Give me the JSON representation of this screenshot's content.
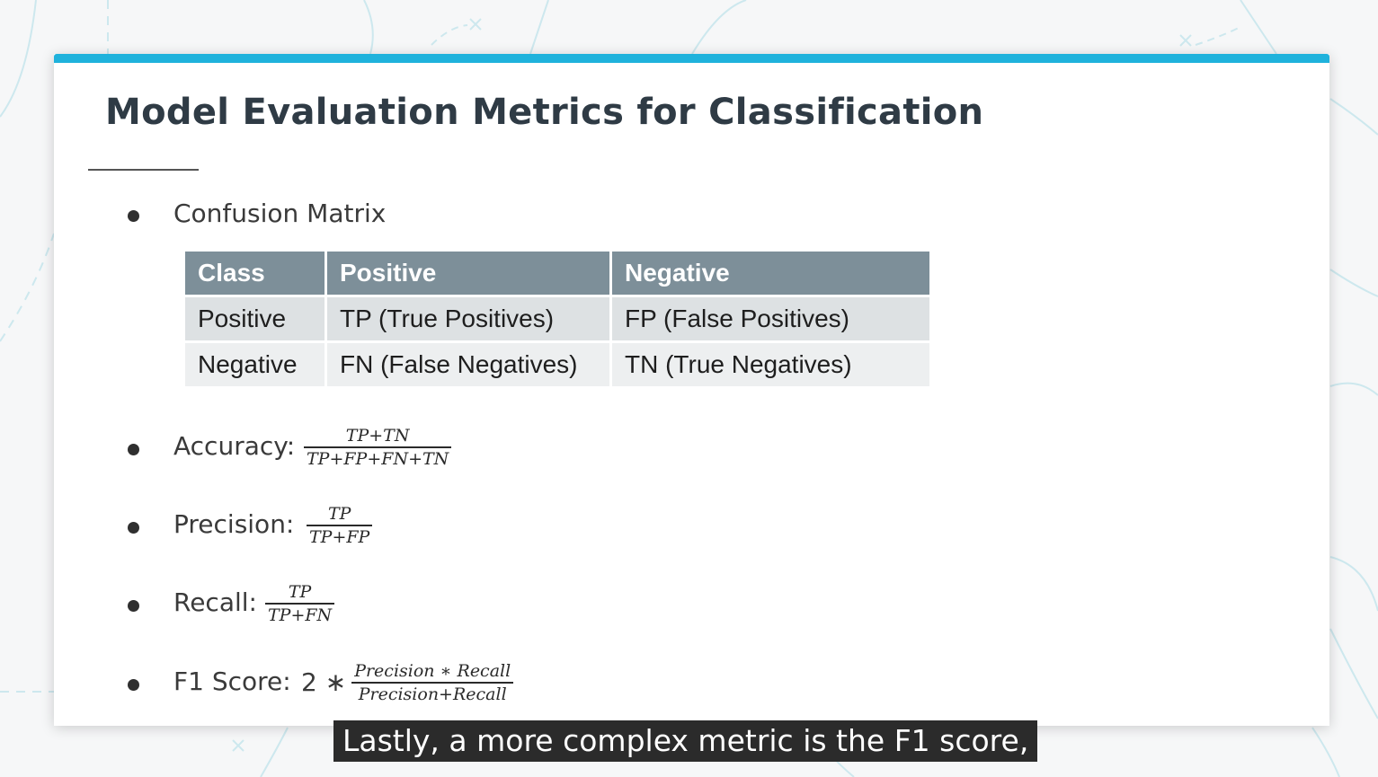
{
  "slide": {
    "title": "Model Evaluation Metrics for Classification",
    "accent_color": "#1fb2dc"
  },
  "bullets": {
    "confusion_matrix": "Confusion Matrix",
    "accuracy": "Accuracy:",
    "precision": "Precision:",
    "recall": "Recall:",
    "f1": "F1 Score:"
  },
  "table": {
    "headers": [
      "Class",
      "Positive",
      "Negative"
    ],
    "rows": [
      [
        "Positive",
        "TP (True Positives)",
        "FP (False Positives)"
      ],
      [
        "Negative",
        "FN (False Negatives)",
        "TN (True Negatives)"
      ]
    ],
    "header_color": "#7d8f99"
  },
  "formulas": {
    "accuracy": {
      "num": "TP+TN",
      "den": "TP+FP+FN+TN"
    },
    "precision": {
      "num": "TP",
      "den": "TP+FP"
    },
    "recall": {
      "num": "TP",
      "den": "TP+FN"
    },
    "f1": {
      "prefix": "2 ∗",
      "num": "Precision ∗ Recall",
      "den": "Precision+Recall"
    }
  },
  "caption": "Lastly, a more complex metric is the F1 score,"
}
